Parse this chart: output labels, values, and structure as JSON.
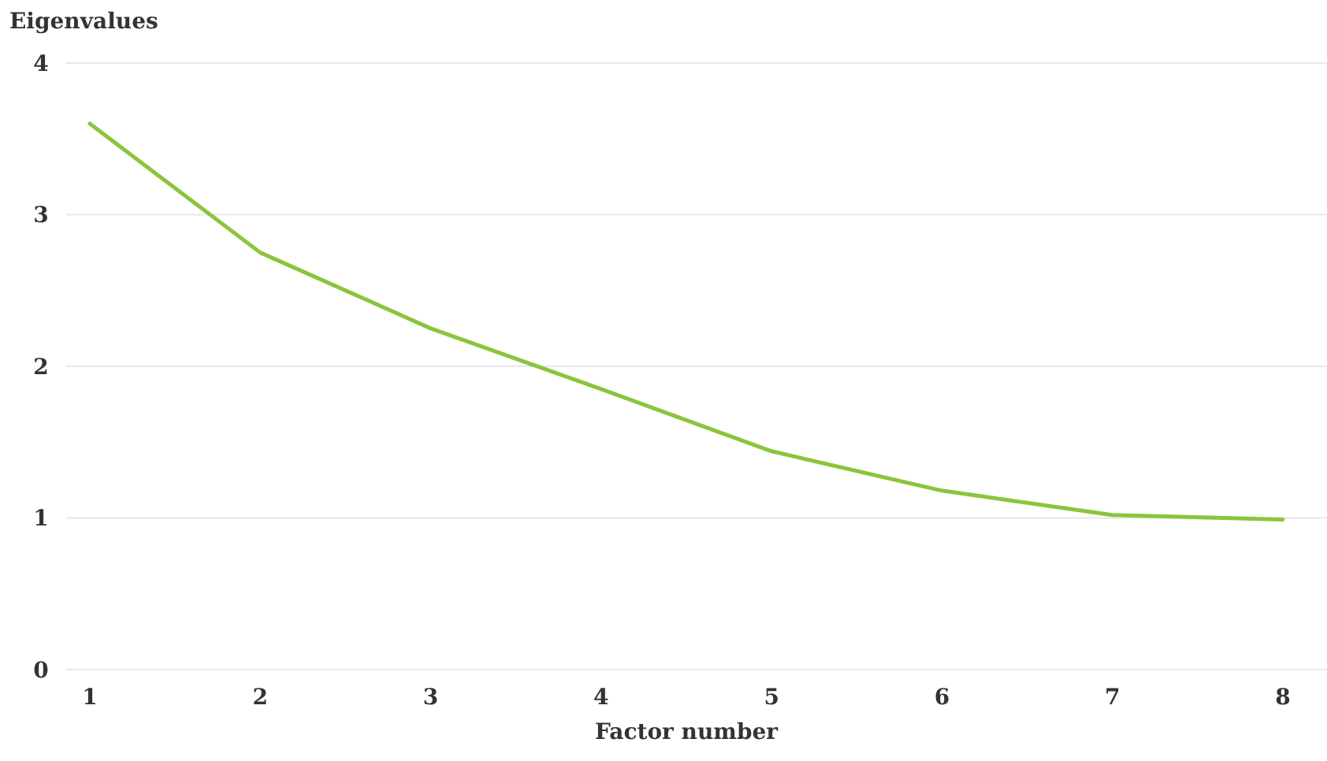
{
  "chart_data": {
    "type": "line",
    "xlabel": "Factor number",
    "ylabel": "Eigenvalues",
    "categories": [
      "1",
      "2",
      "3",
      "4",
      "5",
      "6",
      "7",
      "8"
    ],
    "series": [
      {
        "color": "#8cc43c",
        "values": [
          3.6,
          2.75,
          2.25,
          1.85,
          1.44,
          1.18,
          1.02,
          0.99
        ]
      }
    ],
    "ylim": [
      0,
      4
    ],
    "yticks": [
      0,
      1,
      2,
      3,
      4
    ],
    "grid": "y",
    "marker": "none",
    "line_style": "solid"
  }
}
